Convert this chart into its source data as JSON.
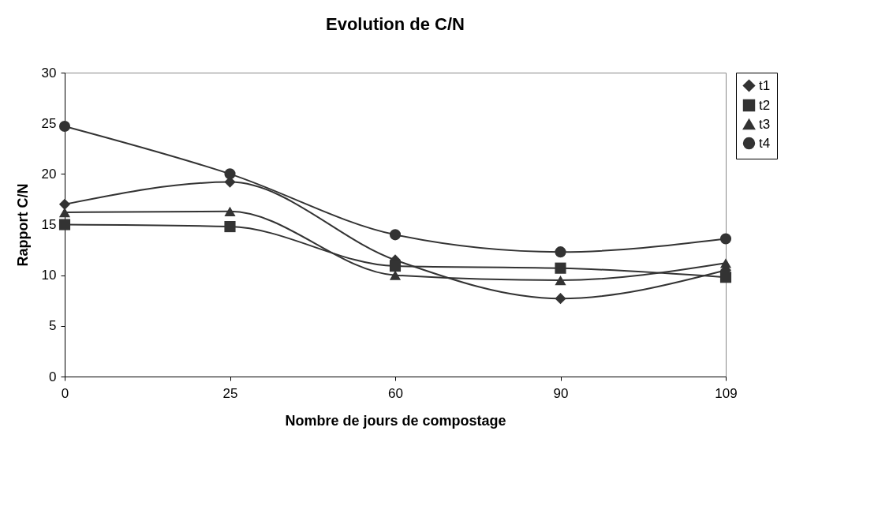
{
  "chart_data": {
    "type": "line",
    "title": "Evolution de C/N",
    "xlabel": "Nombre de jours de compostage",
    "ylabel": "Rapport C/N",
    "categories": [
      "0",
      "25",
      "60",
      "90",
      "109"
    ],
    "series": [
      {
        "name": "t1",
        "color": "#333333",
        "marker": "diamond",
        "values": [
          17.0,
          19.2,
          11.5,
          7.7,
          10.5
        ]
      },
      {
        "name": "t2",
        "color": "#333333",
        "marker": "square",
        "values": [
          15.0,
          14.8,
          10.9,
          10.7,
          9.8
        ]
      },
      {
        "name": "t3",
        "color": "#333333",
        "marker": "triangle",
        "values": [
          16.2,
          16.3,
          10.0,
          9.5,
          11.2
        ]
      },
      {
        "name": "t4",
        "color": "#333333",
        "marker": "circle",
        "values": [
          24.7,
          20.0,
          14.0,
          12.3,
          13.6
        ]
      }
    ],
    "ylim": [
      0,
      30
    ],
    "yticks": [
      0,
      5,
      10,
      15,
      20,
      25,
      30
    ],
    "grid": false,
    "legend": "right",
    "line_style": "solid"
  }
}
